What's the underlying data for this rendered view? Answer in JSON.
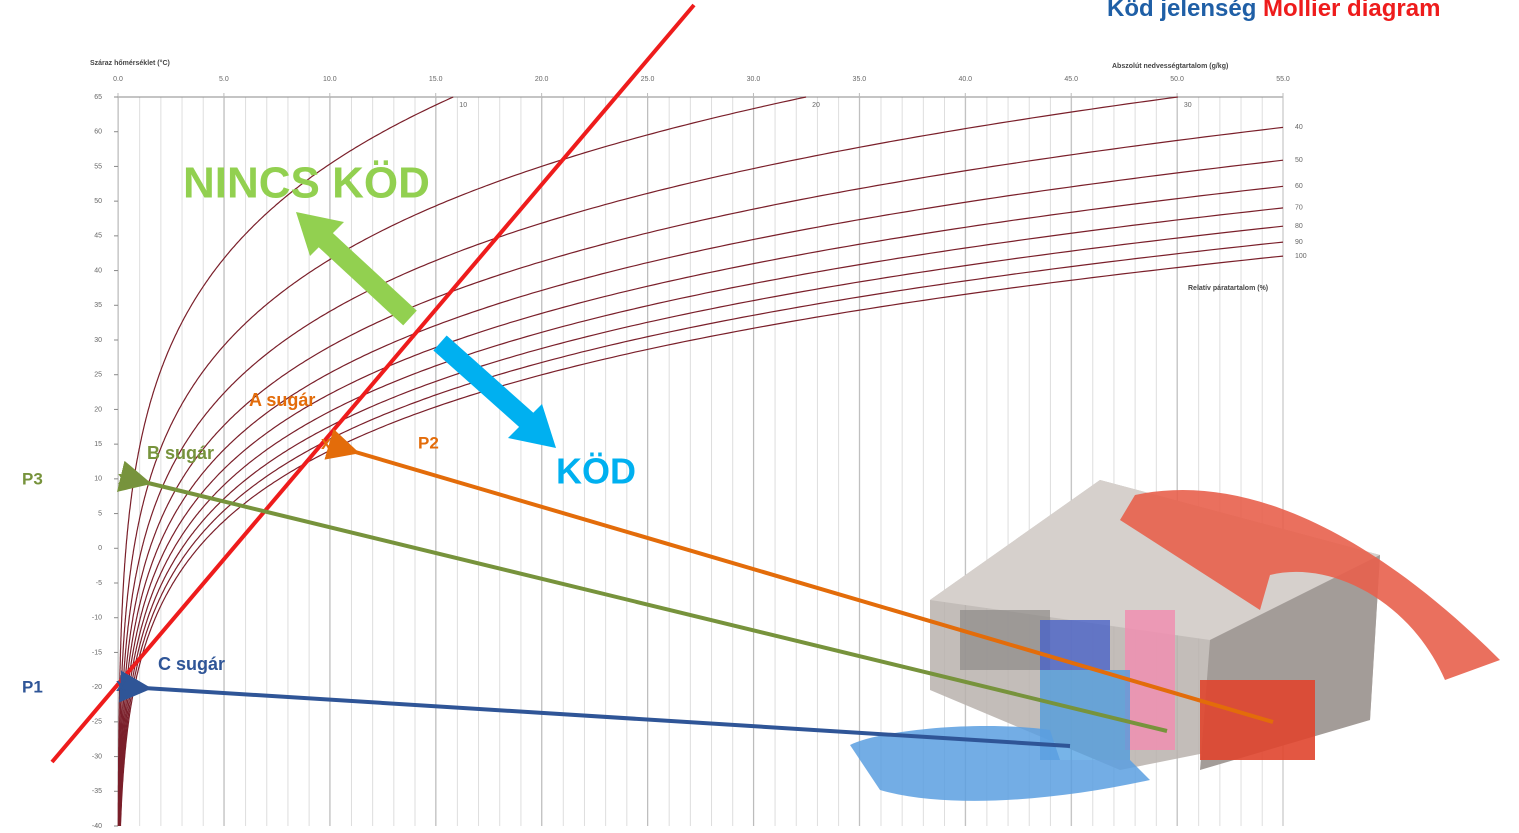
{
  "title": {
    "blue": "Köd jelenség",
    "red": "Mollier diagram"
  },
  "diagram": {
    "x_axis_label": "Abszolút nedvességtartalom (g/kg)",
    "y_axis_label": "Száraz hőmérséklet (°C)",
    "curve_axis_label": "Relatív páratartalom (%)",
    "xlim": [
      0,
      55
    ],
    "ylim": [
      -40,
      65
    ],
    "xticks": [
      {
        "value": 0,
        "label": "0.0"
      },
      {
        "value": 5,
        "label": "5.0"
      },
      {
        "value": 10,
        "label": "10.0"
      },
      {
        "value": 15,
        "label": "15.0"
      },
      {
        "value": 20,
        "label": "20.0"
      },
      {
        "value": 25,
        "label": "25.0"
      },
      {
        "value": 30,
        "label": "30.0"
      },
      {
        "value": 35,
        "label": "35.0"
      },
      {
        "value": 40,
        "label": "40.0"
      },
      {
        "value": 45,
        "label": "45.0"
      },
      {
        "value": 50,
        "label": "50.0"
      },
      {
        "value": 55,
        "label": "55.0"
      }
    ],
    "yticks": [
      65,
      60,
      55,
      50,
      45,
      40,
      35,
      30,
      25,
      20,
      15,
      10,
      5,
      0,
      -5,
      -10,
      -15,
      -20,
      -25,
      -30,
      -35,
      -40
    ],
    "rh_curves": [
      10,
      20,
      30,
      40,
      50,
      60,
      70,
      80,
      90,
      100
    ]
  },
  "annotations": {
    "no_fog": "NINCS KÖD",
    "fog": "KÖD",
    "rays": [
      {
        "label": "A sugár",
        "point": "P2",
        "marker": "x"
      },
      {
        "label": "B sugár",
        "point": "P3",
        "marker": "x"
      },
      {
        "label": "C sugár",
        "point": "P1",
        "marker": "x"
      }
    ]
  }
}
